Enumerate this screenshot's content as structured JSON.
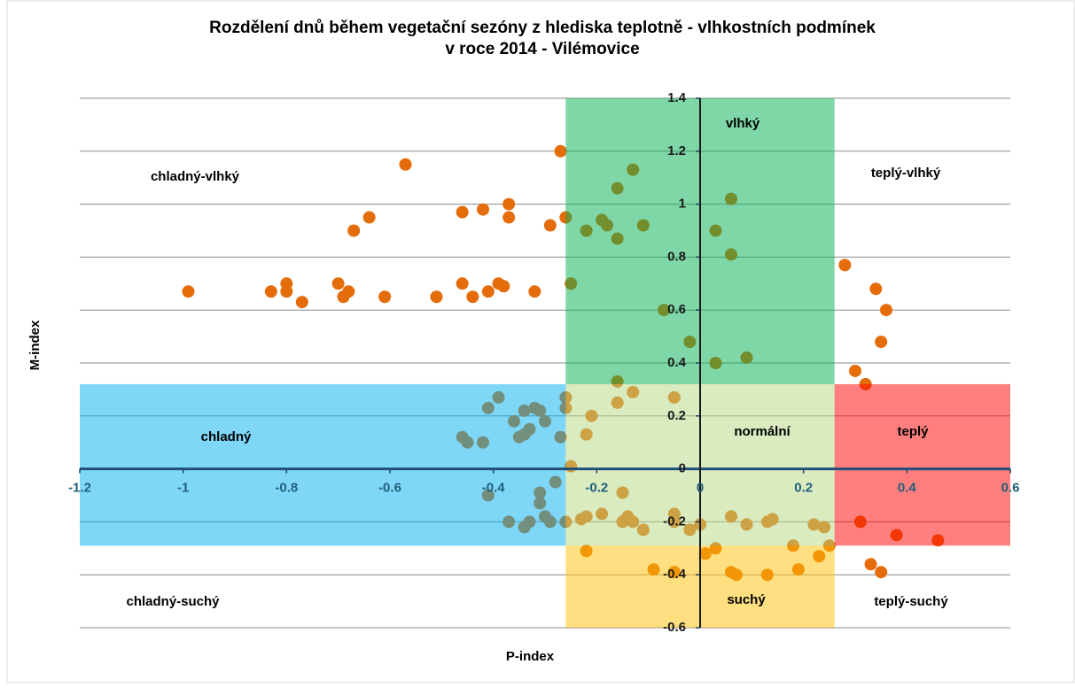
{
  "chart_data": {
    "type": "scatter",
    "title": [
      "Rozdělení dnů během vegetační sezóny z hlediska teplotně - vlhkostních podmínek",
      "v roce 2014 - Vilémovice"
    ],
    "x_label": "P-index",
    "y_label": "M-index",
    "xlim": [
      -1.2,
      0.6
    ],
    "ylim": [
      -0.6,
      1.4
    ],
    "xticks": [
      -1.2,
      -1,
      -0.8,
      -0.6,
      -0.4,
      -0.2,
      0,
      0.2,
      0.4,
      0.6
    ],
    "yticks": [
      -0.6,
      -0.4,
      -0.2,
      0,
      0.2,
      0.4,
      0.6,
      0.8,
      1,
      1.2,
      1.4
    ],
    "grid": true,
    "zone_opacity": 0.5,
    "zones": [
      {
        "label": "vlhký",
        "x": [
          -0.26,
          0.26
        ],
        "y": [
          0.32,
          1.4
        ],
        "color": "#00B050"
      },
      {
        "label": "teplý-vlhký",
        "x": [
          0.26,
          0.6
        ],
        "y": [
          0.32,
          1.4
        ]
      },
      {
        "label": "chladný-vlhký",
        "x": [
          -1.2,
          -0.26
        ],
        "y": [
          0.32,
          1.4
        ]
      },
      {
        "label": "chladný",
        "x": [
          -1.2,
          -0.26
        ],
        "y": [
          -0.29,
          0.32
        ],
        "color": "#00B0F0"
      },
      {
        "label": "normální",
        "x": [
          -0.26,
          0.26
        ],
        "y": [
          -0.29,
          0.32
        ],
        "color": "#B3D77F"
      },
      {
        "label": "teplý",
        "x": [
          0.26,
          0.6
        ],
        "y": [
          -0.29,
          0.32
        ],
        "color": "#FF0000"
      },
      {
        "label": "chladný-suchý",
        "x": [
          -1.2,
          -0.26
        ],
        "y": [
          -0.6,
          -0.29
        ]
      },
      {
        "label": "suchý",
        "x": [
          -0.26,
          0.26
        ],
        "y": [
          -0.6,
          -0.29
        ],
        "color": "#FFC000"
      },
      {
        "label": "teplý-suchý",
        "x": [
          0.26,
          0.6
        ],
        "y": [
          -0.6,
          -0.29
        ]
      }
    ],
    "series": [
      {
        "color": "#E46C0A",
        "x": [
          -0.99,
          -0.83,
          -0.8,
          -0.8,
          -0.77,
          -0.7,
          -0.69,
          -0.68,
          -0.61,
          -0.51,
          -0.57,
          -0.67,
          -0.64,
          -0.46,
          -0.46,
          -0.44,
          -0.42,
          -0.41,
          -0.39,
          -0.38,
          -0.37,
          -0.37,
          -0.32,
          -0.29,
          -0.27,
          -0.26,
          -0.25,
          -0.22,
          -0.19,
          -0.18,
          -0.16,
          -0.13,
          -0.16,
          -0.11,
          -0.07,
          -0.02,
          0.03,
          0.06,
          0.06,
          0.03,
          0.09,
          0.28,
          0.34,
          0.36,
          0.35,
          0.3,
          0.32,
          -0.41,
          -0.39,
          -0.36,
          -0.34,
          -0.32,
          -0.31,
          -0.3,
          -0.33,
          -0.34,
          -0.35,
          -0.46,
          -0.45,
          -0.42,
          -0.27,
          -0.26,
          -0.26,
          -0.31,
          -0.31,
          -0.41,
          -0.37,
          -0.34,
          -0.33,
          -0.3,
          -0.29,
          -0.28,
          -0.26,
          -0.16,
          -0.16,
          -0.13,
          -0.21,
          -0.22,
          -0.25,
          -0.05,
          -0.15,
          -0.23,
          -0.22,
          -0.19,
          -0.15,
          -0.14,
          -0.13,
          -0.11,
          -0.05,
          -0.05,
          -0.02,
          0,
          0.06,
          0.09,
          0.13,
          0.14,
          0.22,
          0.24,
          0.25,
          -0.22,
          -0.09,
          -0.05,
          0.01,
          0.03,
          0.06,
          0.07,
          0.13,
          0.19,
          0.18,
          0.23,
          0.31,
          0.38,
          0.46,
          0.33,
          0.35
        ],
        "y": [
          0.67,
          0.67,
          0.7,
          0.67,
          0.63,
          0.7,
          0.65,
          0.67,
          0.65,
          0.65,
          1.15,
          0.9,
          0.95,
          0.7,
          0.97,
          0.65,
          0.98,
          0.67,
          0.7,
          0.69,
          0.95,
          1,
          0.67,
          0.92,
          1.2,
          0.95,
          0.7,
          0.9,
          0.94,
          0.92,
          1.06,
          1.13,
          0.87,
          0.92,
          0.6,
          0.48,
          0.9,
          1.02,
          0.81,
          0.4,
          0.42,
          0.77,
          0.68,
          0.6,
          0.48,
          0.37,
          0.32,
          0.23,
          0.27,
          0.18,
          0.22,
          0.23,
          0.22,
          0.18,
          0.15,
          0.13,
          0.12,
          0.12,
          0.1,
          0.1,
          0.12,
          0.27,
          0.23,
          -0.09,
          -0.13,
          -0.1,
          -0.2,
          -0.22,
          -0.2,
          -0.18,
          -0.2,
          -0.05,
          -0.2,
          0.33,
          0.25,
          0.29,
          0.2,
          0.13,
          0.01,
          0.27,
          -0.09,
          -0.19,
          -0.18,
          -0.17,
          -0.2,
          -0.18,
          -0.2,
          -0.23,
          -0.17,
          -0.2,
          -0.23,
          -0.21,
          -0.18,
          -0.21,
          -0.2,
          -0.19,
          -0.21,
          -0.22,
          -0.29,
          -0.31,
          -0.38,
          -0.39,
          -0.32,
          -0.3,
          -0.39,
          -0.4,
          -0.4,
          -0.38,
          -0.29,
          -0.33,
          -0.2,
          -0.25,
          -0.27,
          -0.36,
          -0.39
        ]
      }
    ]
  }
}
